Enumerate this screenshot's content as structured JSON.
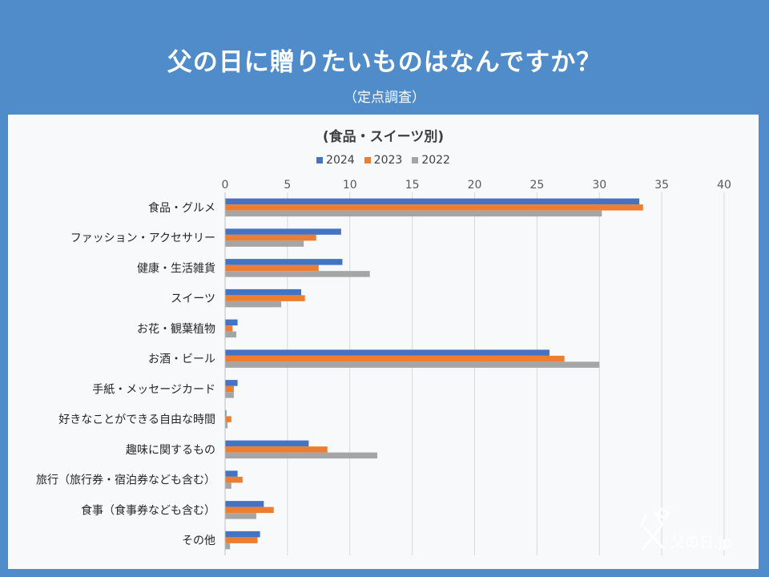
{
  "header": {
    "title": "父の日に贈りたいものはなんですか？",
    "subtitle": "（定点調査）"
  },
  "logo": {
    "text": "父の日.jp"
  },
  "colors": {
    "background": "#4f8cc9",
    "panel": "#f7f9fb",
    "series_2024": "#4472c4",
    "series_2023": "#ed7d31",
    "series_2022": "#a5a5a5"
  },
  "chart_data": {
    "type": "bar",
    "orientation": "horizontal",
    "title": "(食品・スイーツ別)",
    "xlabel": "",
    "ylabel": "",
    "xlim": [
      0,
      40
    ],
    "x_ticks": [
      0,
      5,
      10,
      15,
      20,
      25,
      30,
      35,
      40
    ],
    "grid": true,
    "legend_position": "top-center",
    "categories": [
      "食品・グルメ",
      "ファッション・アクセサリー",
      "健康・生活雑貨",
      "スイーツ",
      "お花・観葉植物",
      "お酒・ビール",
      "手紙・メッセージカード",
      "好きなことができる自由な時間",
      "趣味に関するもの",
      "旅行（旅行券・宿泊券なども含む）",
      "食事（食事券なども含む）",
      "その他"
    ],
    "series": [
      {
        "name": "2024",
        "color": "#4472c4",
        "values": [
          33.2,
          9.3,
          9.4,
          6.1,
          1.0,
          26.0,
          1.0,
          0.1,
          6.7,
          1.0,
          3.1,
          2.8
        ]
      },
      {
        "name": "2023",
        "color": "#ed7d31",
        "values": [
          33.5,
          7.3,
          7.5,
          6.4,
          0.6,
          27.2,
          0.7,
          0.5,
          8.2,
          1.4,
          3.9,
          2.6
        ]
      },
      {
        "name": "2022",
        "color": "#a5a5a5",
        "values": [
          30.2,
          6.3,
          11.6,
          4.5,
          0.9,
          30.0,
          0.7,
          0.2,
          12.2,
          0.5,
          2.5,
          0.4
        ]
      }
    ]
  }
}
